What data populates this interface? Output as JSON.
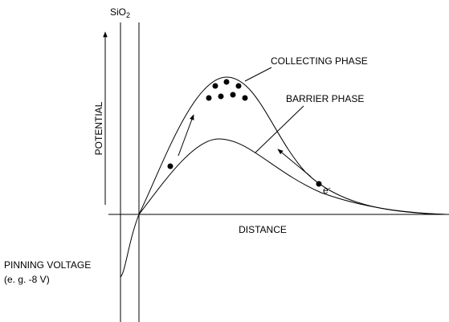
{
  "title_labels": {
    "oxide": {
      "text": "SiO",
      "subscript": "2"
    },
    "y_axis": "POTENTIAL",
    "x_axis": "DISTANCE",
    "collecting": "COLLECTING PHASE",
    "barrier": "BARRIER PHASE",
    "pinning": [
      "PINNING VOLTAGE",
      "(e. g. -8 V)"
    ],
    "electron": {
      "text": "e",
      "superscript": "-"
    }
  }
}
